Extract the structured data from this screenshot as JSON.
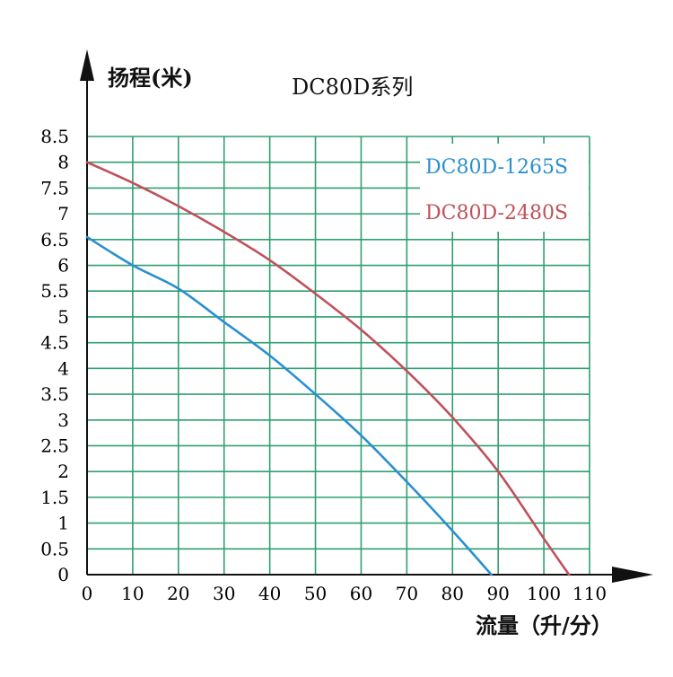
{
  "chart_data": {
    "type": "line",
    "title": "DC80D系列",
    "ylabel": "扬程(米)",
    "xlabel": "流量（升/分）",
    "x_ticks": [
      0,
      10,
      20,
      30,
      40,
      50,
      60,
      70,
      80,
      90,
      100,
      110
    ],
    "y_ticks": [
      0,
      0.5,
      1,
      1.5,
      2,
      2.5,
      3,
      3.5,
      4,
      4.5,
      5,
      5.5,
      6,
      6.5,
      7,
      7.5,
      8,
      8.5
    ],
    "xlim": [
      0,
      110
    ],
    "ylim": [
      0,
      8.5
    ],
    "grid": true,
    "legend_position": "top-right",
    "series": [
      {
        "name": "DC80D-1265S",
        "color": "#2a8fd0",
        "x": [
          0,
          10,
          20,
          30,
          40,
          50,
          60,
          70,
          80,
          88.5
        ],
        "y": [
          6.55,
          6.0,
          5.55,
          4.9,
          4.25,
          3.5,
          2.7,
          1.8,
          0.85,
          0
        ]
      },
      {
        "name": "DC80D-2480S",
        "color": "#c0505a",
        "x": [
          0,
          10,
          20,
          30,
          40,
          50,
          60,
          70,
          80,
          90,
          100,
          105.5
        ],
        "y": [
          8.0,
          7.6,
          7.15,
          6.65,
          6.1,
          5.45,
          4.75,
          3.95,
          3.05,
          2.0,
          0.7,
          0
        ]
      }
    ]
  },
  "colors": {
    "grid": "#2f9f70",
    "axis": "#111111"
  }
}
